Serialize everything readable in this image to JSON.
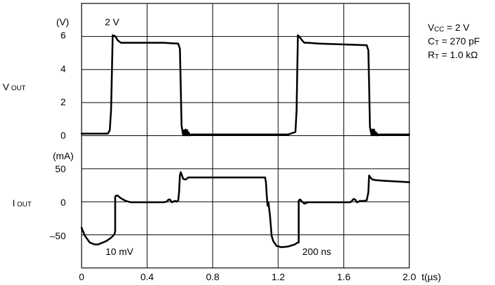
{
  "chart_data": {
    "type": "line",
    "x_unit_label": "t(µs)",
    "x_ticks": [
      0,
      0.4,
      0.8,
      1.2,
      1.6,
      2.0
    ],
    "x_tick_labels": [
      "0",
      "0.4",
      "0.8",
      "1.2",
      "1.6",
      "2.0"
    ],
    "xlim": [
      0,
      2.0
    ],
    "vout_axis": {
      "label": "V OUT",
      "label_parts": [
        "V",
        "OUT"
      ],
      "unit": "(V)",
      "ticks": [
        0,
        2,
        4,
        6
      ],
      "tick_labels": [
        "0",
        "2",
        "4",
        "6"
      ],
      "scale_annotation": "2 V"
    },
    "iout_axis": {
      "label": "I OUT",
      "label_parts": [
        "I",
        "OUT"
      ],
      "unit": "(mA)",
      "ticks": [
        -50,
        0,
        50
      ],
      "tick_labels": [
        "–50",
        "0",
        "50"
      ],
      "scale_annotation": "10 mV"
    },
    "time_annotation": "200 ns",
    "conditions": [
      {
        "sym": "V",
        "sub": "CC",
        "val": " = 2 V"
      },
      {
        "sym": "C",
        "sub": "T",
        "val": " = 270 pF"
      },
      {
        "sym": "R",
        "sub": "T",
        "val": " = 1.0 kΩ"
      }
    ],
    "series": [
      {
        "axis": "vout",
        "x": [
          0,
          0.1,
          0.16,
          0.172,
          0.18,
          0.19,
          0.205,
          0.22,
          0.24,
          0.3,
          0.4,
          0.5,
          0.59,
          0.6,
          0.605,
          0.61,
          0.62,
          0.625,
          0.63,
          0.635,
          0.64,
          0.645,
          0.65,
          0.655,
          0.66,
          0.67,
          0.7,
          0.9,
          1.1,
          1.26,
          1.305,
          1.312,
          1.32,
          1.33,
          1.345,
          1.36,
          1.38,
          1.45,
          1.6,
          1.74,
          1.75,
          1.755,
          1.76,
          1.77,
          1.775,
          1.78,
          1.785,
          1.79,
          1.795,
          1.8,
          1.805,
          1.81,
          1.82,
          1.85,
          2.0
        ],
        "y": [
          0.1,
          0.1,
          0.1,
          0.3,
          1.5,
          6.0,
          5.95,
          5.7,
          5.55,
          5.55,
          5.55,
          5.55,
          5.5,
          5.2,
          3.0,
          0.6,
          0.0,
          0.3,
          0.0,
          0.35,
          0.0,
          0.3,
          0.0,
          0.15,
          0.0,
          0.05,
          0.05,
          0.05,
          0.05,
          0.05,
          0.2,
          1.5,
          6.0,
          5.9,
          5.7,
          5.55,
          5.55,
          5.5,
          5.45,
          5.4,
          5.1,
          3.0,
          0.5,
          0.0,
          0.35,
          0.0,
          0.35,
          0.0,
          0.2,
          0.0,
          0.1,
          0.0,
          0.05,
          0.05,
          0.05
        ]
      },
      {
        "axis": "iout",
        "x": [
          0,
          0.02,
          0.05,
          0.08,
          0.1,
          0.12,
          0.15,
          0.18,
          0.2,
          0.205,
          0.205,
          0.21,
          0.22,
          0.24,
          0.27,
          0.3,
          0.4,
          0.5,
          0.52,
          0.53,
          0.54,
          0.55,
          0.56,
          0.57,
          0.58,
          0.585,
          0.59,
          0.595,
          0.6,
          0.605,
          0.61,
          0.62,
          0.635,
          0.65,
          0.7,
          0.8,
          1.0,
          1.12,
          1.125,
          1.13,
          1.135,
          1.14,
          1.15,
          1.16,
          1.17,
          1.19,
          1.22,
          1.26,
          1.3,
          1.32,
          1.325,
          1.325,
          1.33,
          1.335,
          1.34,
          1.36,
          1.38,
          1.45,
          1.55,
          1.64,
          1.65,
          1.66,
          1.67,
          1.68,
          1.69,
          1.7,
          1.72,
          1.74,
          1.75,
          1.755,
          1.76,
          1.775,
          1.8,
          1.85,
          2.0
        ],
        "y": [
          -38,
          -50,
          -60,
          -63,
          -63,
          -61,
          -58,
          -53,
          -48,
          -43,
          8,
          10,
          10,
          6,
          2,
          0,
          0,
          0,
          1,
          4,
          4,
          0,
          1,
          2,
          1,
          2,
          3,
          15,
          40,
          45,
          42,
          35,
          34,
          37,
          37,
          37,
          37,
          37,
          30,
          10,
          -5,
          0,
          -20,
          -50,
          -58,
          -65,
          -67,
          -66,
          -63,
          -60,
          -60,
          2,
          4,
          4,
          2,
          -2,
          0,
          0,
          0,
          0,
          2,
          5,
          4,
          0,
          1,
          2,
          2,
          3,
          15,
          40,
          38,
          34,
          33,
          32,
          30
        ]
      }
    ]
  }
}
